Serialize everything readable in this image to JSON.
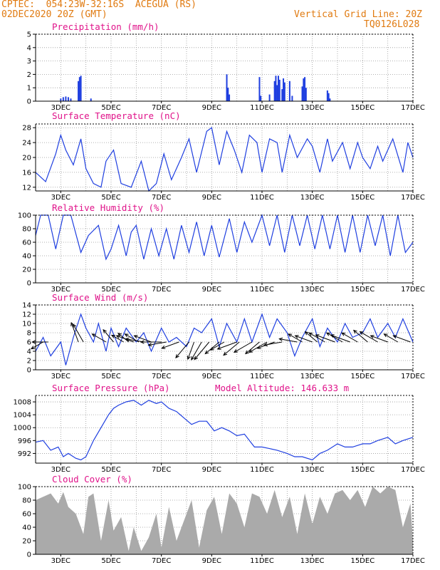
{
  "header": {
    "station": "CPTEC:  054:23W-32:16S  ACEGUA (RS)",
    "date": "02DEC2020 20Z (GMT)",
    "grid_line": "Vertical Grid Line: 20Z",
    "code": "TQ0126L028"
  },
  "colors": {
    "header": "#e07a10",
    "title": "#e0138a",
    "line": "#1f3fe0",
    "bar": "#1f3fe0",
    "cloud": "#aaaaaa"
  },
  "x_labels": [
    "3DEC",
    "5DEC",
    "7DEC",
    "9DEC",
    "11DEC",
    "13DEC",
    "15DEC",
    "17DEC"
  ],
  "chart_data": [
    {
      "id": "precip",
      "type": "bar",
      "title": "Precipitation (mm/h)",
      "ylim": [
        0,
        5
      ],
      "yticks": [
        0,
        1,
        2,
        3,
        4,
        5
      ],
      "x_unit": "day of December 2020 (fractional)",
      "x": [
        3.0,
        3.1,
        3.2,
        3.3,
        3.4,
        3.7,
        3.75,
        3.8,
        4.2,
        9.6,
        9.65,
        9.7,
        10.9,
        10.95,
        11.3,
        11.5,
        11.55,
        11.6,
        11.65,
        11.7,
        11.8,
        11.85,
        11.9,
        12.1,
        12.2,
        12.6,
        12.65,
        12.7,
        12.75,
        13.6,
        13.65,
        13.7
      ],
      "values": [
        0.2,
        0.3,
        0.35,
        0.3,
        0.2,
        1.5,
        1.8,
        1.9,
        0.2,
        2.0,
        1.0,
        0.5,
        1.8,
        0.4,
        0.5,
        1.5,
        1.9,
        1.2,
        1.9,
        1.6,
        0.9,
        1.7,
        1.4,
        1.5,
        0.4,
        1.1,
        1.7,
        1.8,
        1.0,
        0.8,
        0.6,
        0.2
      ]
    },
    {
      "id": "temp",
      "type": "line",
      "title": "Surface Temperature (nC)",
      "ylim": [
        11,
        29
      ],
      "yticks": [
        12,
        16,
        20,
        24,
        28
      ],
      "x": [
        2.0,
        2.4,
        2.8,
        3.0,
        3.2,
        3.5,
        3.8,
        4.0,
        4.3,
        4.6,
        4.8,
        5.1,
        5.4,
        5.8,
        6.2,
        6.5,
        6.8,
        7.1,
        7.4,
        7.8,
        8.1,
        8.4,
        8.8,
        9.0,
        9.3,
        9.6,
        9.9,
        10.2,
        10.5,
        10.8,
        11.0,
        11.3,
        11.6,
        11.8,
        12.1,
        12.4,
        12.8,
        13.0,
        13.3,
        13.6,
        13.8,
        14.2,
        14.5,
        14.8,
        15.0,
        15.3,
        15.6,
        15.8,
        16.2,
        16.6,
        16.8,
        17.0
      ],
      "values": [
        16,
        13.5,
        21,
        26,
        22,
        18,
        25,
        17,
        13,
        12,
        19,
        22,
        13,
        12,
        19,
        11,
        13,
        21,
        14,
        20,
        25,
        16,
        27,
        28,
        18,
        27,
        22,
        16,
        26,
        24,
        16,
        25,
        24,
        16,
        26,
        20,
        25,
        23,
        16,
        25,
        19,
        24,
        17,
        24,
        20,
        17,
        23,
        19,
        25,
        16,
        24,
        20
      ]
    },
    {
      "id": "rh",
      "type": "line",
      "title": "Relative Humidity (%)",
      "ylim": [
        0,
        100
      ],
      "yticks": [
        0,
        20,
        40,
        60,
        80,
        100
      ],
      "x": [
        2.0,
        2.2,
        2.5,
        2.8,
        3.1,
        3.4,
        3.8,
        4.1,
        4.5,
        4.8,
        5.0,
        5.3,
        5.6,
        5.8,
        6.0,
        6.3,
        6.6,
        6.9,
        7.2,
        7.5,
        7.8,
        8.1,
        8.4,
        8.7,
        9.0,
        9.3,
        9.7,
        10.0,
        10.3,
        10.6,
        11.0,
        11.3,
        11.6,
        11.9,
        12.2,
        12.5,
        12.8,
        13.1,
        13.4,
        13.7,
        14.0,
        14.3,
        14.6,
        14.9,
        15.2,
        15.5,
        15.8,
        16.1,
        16.4,
        16.7,
        17.0
      ],
      "values": [
        70,
        100,
        100,
        50,
        100,
        100,
        45,
        70,
        85,
        35,
        50,
        85,
        40,
        75,
        85,
        35,
        80,
        40,
        80,
        35,
        85,
        45,
        90,
        40,
        85,
        38,
        95,
        45,
        90,
        60,
        100,
        55,
        100,
        45,
        100,
        55,
        100,
        50,
        100,
        50,
        100,
        45,
        100,
        45,
        100,
        55,
        100,
        40,
        100,
        45,
        60
      ]
    },
    {
      "id": "wind",
      "type": "line",
      "title": "Surface Wind (m/s)",
      "ylim": [
        0,
        14
      ],
      "yticks": [
        0,
        2,
        4,
        6,
        8,
        10,
        12,
        14
      ],
      "x": [
        2.0,
        2.3,
        2.6,
        3.0,
        3.2,
        3.5,
        3.8,
        4.0,
        4.3,
        4.5,
        4.8,
        5.0,
        5.3,
        5.6,
        6.0,
        6.3,
        6.6,
        7.0,
        7.3,
        7.6,
        8.0,
        8.3,
        8.6,
        9.0,
        9.3,
        9.6,
        10.0,
        10.3,
        10.6,
        11.0,
        11.3,
        11.6,
        12.0,
        12.3,
        12.6,
        13.0,
        13.3,
        13.6,
        14.0,
        14.3,
        14.6,
        15.0,
        15.3,
        15.6,
        16.0,
        16.3,
        16.6,
        17.0
      ],
      "values": [
        4,
        7,
        3,
        6,
        1,
        7,
        12,
        9,
        6,
        10,
        4,
        9,
        5,
        9,
        6,
        8,
        4,
        9,
        6,
        7,
        5,
        9,
        8,
        11,
        5,
        10,
        6,
        11,
        6,
        12,
        7,
        11,
        8,
        3,
        7,
        11,
        5,
        9,
        6,
        10,
        7,
        8,
        11,
        7,
        10,
        7,
        11,
        6
      ],
      "vectors_x": [
        2.3,
        2.5,
        3.7,
        3.9,
        4.8,
        5.1,
        5.5,
        5.7,
        5.9,
        6.1,
        6.3,
        6.6,
        7.0,
        7.2,
        7.7,
        8.1,
        8.3,
        8.6,
        8.9,
        9.3,
        9.5,
        10.0,
        10.1,
        10.6,
        10.9,
        11.2,
        11.5,
        11.8,
        12.4,
        12.6,
        13.0,
        13.2,
        13.5,
        13.9,
        14.2,
        14.5,
        14.8,
        15.2,
        15.6,
        16.0,
        16.4,
        16.9
      ],
      "vectors_deg": [
        240,
        270,
        340,
        330,
        300,
        320,
        300,
        310,
        290,
        300,
        280,
        290,
        270,
        260,
        250,
        220,
        200,
        210,
        220,
        230,
        240,
        250,
        230,
        240,
        230,
        240,
        250,
        260,
        280,
        300,
        290,
        310,
        300,
        290,
        300,
        290,
        300,
        310,
        300,
        290,
        300,
        290
      ],
      "vectors_len": [
        6,
        7,
        9,
        9,
        7,
        7,
        6,
        6,
        8,
        7,
        8,
        8,
        9,
        8,
        8,
        9,
        8,
        9,
        10,
        8,
        7,
        9,
        9,
        9,
        8,
        9,
        8,
        8,
        8,
        7,
        8,
        7,
        8,
        9,
        8,
        9,
        8,
        8,
        9,
        8,
        7,
        8
      ]
    },
    {
      "id": "press",
      "type": "line",
      "title": "Surface Pressure (hPa)",
      "annotation": "Model Altitude: 146.633 m",
      "ylim": [
        989,
        1010
      ],
      "yticks": [
        992,
        996,
        1000,
        1004,
        1008
      ],
      "x": [
        2.0,
        2.3,
        2.6,
        2.9,
        3.1,
        3.3,
        3.6,
        3.8,
        4.0,
        4.3,
        4.6,
        4.9,
        5.1,
        5.3,
        5.6,
        5.9,
        6.2,
        6.5,
        6.8,
        7.0,
        7.3,
        7.6,
        7.9,
        8.2,
        8.5,
        8.8,
        9.1,
        9.4,
        9.7,
        10.0,
        10.3,
        10.7,
        11.0,
        11.3,
        11.6,
        12.0,
        12.3,
        12.6,
        13.0,
        13.3,
        13.6,
        14.0,
        14.3,
        14.6,
        15.0,
        15.3,
        15.6,
        16.0,
        16.3,
        16.6,
        17.0
      ],
      "values": [
        995.5,
        996,
        993,
        994,
        991,
        992,
        990.5,
        990,
        991,
        996,
        1000,
        1004,
        1006,
        1007,
        1008,
        1008.5,
        1007,
        1008.5,
        1007.5,
        1008,
        1006,
        1005,
        1003,
        1001,
        1002,
        1002,
        999,
        1000,
        999,
        997.5,
        998,
        994,
        994,
        993.5,
        993,
        992,
        991,
        991,
        990,
        992,
        993,
        995,
        994,
        994,
        995,
        995,
        996,
        997,
        995,
        996,
        997
      ]
    },
    {
      "id": "cloud",
      "type": "area",
      "title": "Cloud Cover (%)",
      "ylim": [
        0,
        100
      ],
      "yticks": [
        0,
        20,
        40,
        60,
        80,
        100
      ],
      "x": [
        2.0,
        2.3,
        2.6,
        2.9,
        3.1,
        3.3,
        3.6,
        3.9,
        4.1,
        4.3,
        4.6,
        4.9,
        5.1,
        5.4,
        5.7,
        5.9,
        6.2,
        6.5,
        6.8,
        7.0,
        7.3,
        7.6,
        7.9,
        8.2,
        8.5,
        8.8,
        9.1,
        9.4,
        9.7,
        10.0,
        10.3,
        10.6,
        10.9,
        11.2,
        11.5,
        11.8,
        12.1,
        12.4,
        12.7,
        13.0,
        13.3,
        13.6,
        13.9,
        14.2,
        14.5,
        14.8,
        15.1,
        15.4,
        15.7,
        16.0,
        16.3,
        16.6,
        16.9,
        17.0
      ],
      "values": [
        80,
        85,
        90,
        75,
        92,
        70,
        60,
        30,
        85,
        90,
        20,
        80,
        35,
        55,
        5,
        40,
        5,
        25,
        60,
        10,
        70,
        20,
        50,
        80,
        10,
        65,
        85,
        30,
        90,
        75,
        40,
        90,
        85,
        60,
        95,
        55,
        85,
        30,
        90,
        45,
        85,
        60,
        90,
        95,
        80,
        95,
        70,
        100,
        90,
        100,
        95,
        40,
        75,
        20
      ]
    }
  ]
}
